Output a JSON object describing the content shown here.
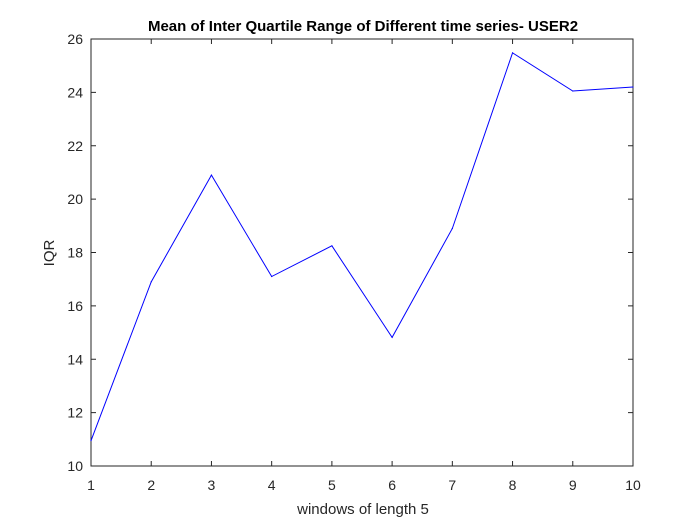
{
  "chart_data": {
    "type": "line",
    "title": "Mean of Inter Quartile Range of Different time series- USER2",
    "xlabel": "windows of length 5",
    "ylabel": "IQR",
    "xlim": [
      1,
      10
    ],
    "ylim": [
      10,
      26
    ],
    "xticks": [
      1,
      2,
      3,
      4,
      5,
      6,
      7,
      8,
      9,
      10
    ],
    "yticks": [
      10,
      12,
      14,
      16,
      18,
      20,
      22,
      24,
      26
    ],
    "grid": false,
    "legend": "none",
    "line_color": "#0000ff",
    "axis_color": "#262626",
    "series": [
      {
        "x": [
          1,
          2,
          3,
          4,
          5,
          6,
          7,
          8,
          9,
          10
        ],
        "y": [
          10.95,
          16.9,
          20.9,
          17.1,
          18.25,
          14.82,
          18.9,
          25.48,
          24.05,
          24.2
        ]
      }
    ]
  }
}
